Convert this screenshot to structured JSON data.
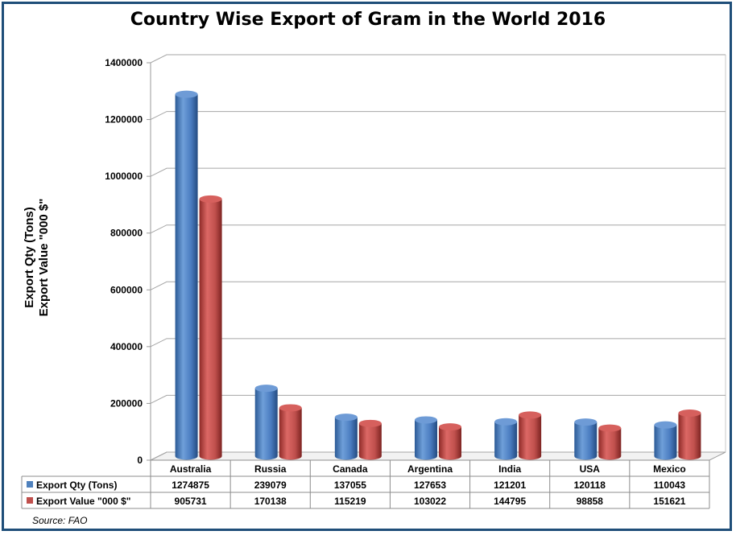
{
  "chart_data": {
    "type": "bar",
    "title": "Country Wise Export of Gram in the World 2016",
    "ylabel_lines": [
      "Export Qty (Tons)",
      "Export Value \"000 $\""
    ],
    "categories": [
      "Australia",
      "Russia",
      "Canada",
      "Argentina",
      "India",
      "USA",
      "Mexico"
    ],
    "series": [
      {
        "name": "Export Qty (Tons)",
        "color": "#4f81bd",
        "values": [
          1274875,
          239079,
          137055,
          127653,
          121201,
          120118,
          110043
        ]
      },
      {
        "name": "Export Value \"000 $\"",
        "color": "#c0504d",
        "values": [
          905731,
          170138,
          115219,
          103022,
          144795,
          98858,
          151621
        ]
      }
    ],
    "ylim": [
      0,
      1400000
    ],
    "yticks": [
      0,
      200000,
      400000,
      600000,
      800000,
      1000000,
      1200000,
      1400000
    ],
    "grid": true,
    "legend": "data-table-left",
    "data_table": [
      [
        "1274875",
        "239079",
        "137055",
        "127653",
        "121201",
        "120118",
        "110043"
      ],
      [
        "905731",
        "170138",
        "115219",
        "103022",
        "144795",
        "98858",
        "151621"
      ]
    ],
    "source": "Source: FAO"
  }
}
